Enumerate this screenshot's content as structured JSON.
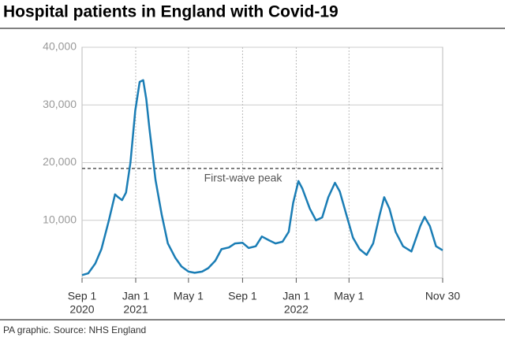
{
  "chart_data": {
    "type": "line",
    "title": "Hospital patients in England with Covid-19",
    "source": "PA graphic. Source: NHS England",
    "x": [
      "2020-09-01",
      "2020-09-15",
      "2020-10-01",
      "2020-10-15",
      "2020-11-01",
      "2020-11-15",
      "2020-11-22",
      "2020-12-01",
      "2020-12-10",
      "2020-12-20",
      "2020-12-31",
      "2021-01-10",
      "2021-01-18",
      "2021-01-25",
      "2021-02-01",
      "2021-02-15",
      "2021-03-01",
      "2021-03-15",
      "2021-04-01",
      "2021-04-15",
      "2021-05-01",
      "2021-05-15",
      "2021-06-01",
      "2021-06-15",
      "2021-07-01",
      "2021-07-15",
      "2021-08-01",
      "2021-08-15",
      "2021-09-01",
      "2021-09-15",
      "2021-10-01",
      "2021-10-15",
      "2021-11-01",
      "2021-11-15",
      "2021-12-01",
      "2021-12-15",
      "2021-12-25",
      "2022-01-06",
      "2022-01-15",
      "2022-02-01",
      "2022-02-15",
      "2022-03-01",
      "2022-03-15",
      "2022-03-30",
      "2022-04-10",
      "2022-04-25",
      "2022-05-10",
      "2022-05-25",
      "2022-06-10",
      "2022-06-25",
      "2022-07-10",
      "2022-07-20",
      "2022-08-01",
      "2022-08-15",
      "2022-09-01",
      "2022-09-20",
      "2022-10-10",
      "2022-10-20",
      "2022-11-01",
      "2022-11-15",
      "2022-11-30"
    ],
    "series": [
      {
        "name": "Hospital patients",
        "color": "#1a7db5",
        "values": [
          500,
          800,
          2500,
          5000,
          10000,
          14500,
          14000,
          13500,
          14800,
          20000,
          29000,
          34000,
          34300,
          31000,
          26000,
          17000,
          11000,
          6000,
          3500,
          2000,
          1100,
          900,
          1100,
          1700,
          3000,
          5000,
          5300,
          6000,
          6100,
          5200,
          5500,
          7200,
          6500,
          6000,
          6300,
          8000,
          13000,
          16800,
          15500,
          12000,
          10000,
          10500,
          14000,
          16500,
          15000,
          11000,
          7000,
          5000,
          4000,
          6000,
          11000,
          14000,
          12000,
          8000,
          5500,
          4600,
          9000,
          10600,
          9000,
          5500,
          4800
        ]
      }
    ],
    "xlim": [
      "2020-09-01",
      "2022-11-30"
    ],
    "xticks": [
      {
        "value": "2020-09-01",
        "label": "Sep 1",
        "year": "2020"
      },
      {
        "value": "2021-01-01",
        "label": "Jan 1",
        "year": "2021"
      },
      {
        "value": "2021-05-01",
        "label": "May 1"
      },
      {
        "value": "2021-09-01",
        "label": "Sep 1"
      },
      {
        "value": "2022-01-01",
        "label": "Jan 1",
        "year": "2022"
      },
      {
        "value": "2022-05-01",
        "label": "May 1"
      },
      {
        "value": "2022-11-30",
        "label": "Nov 30"
      }
    ],
    "ylim": [
      0,
      40000
    ],
    "yticks": [
      {
        "value": 10000,
        "label": "10,000"
      },
      {
        "value": 20000,
        "label": "20,000"
      },
      {
        "value": 30000,
        "label": "30,000"
      },
      {
        "value": 40000,
        "label": "40,000"
      }
    ],
    "reference": {
      "value": 19000,
      "label": "First-wave peak"
    },
    "grid": true
  }
}
